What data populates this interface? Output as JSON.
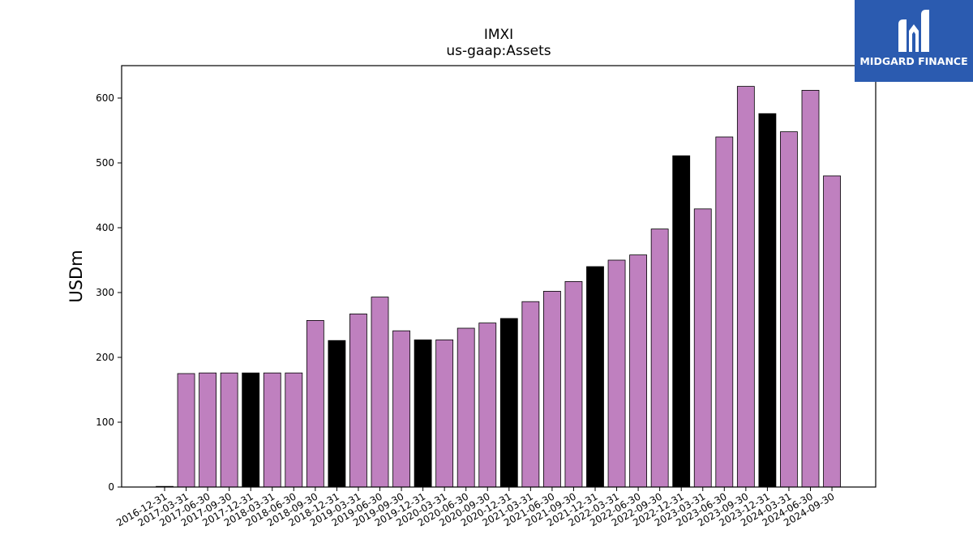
{
  "logo": {
    "text": "MIDGARD FINANCE"
  },
  "chart_data": {
    "type": "bar",
    "title": "IMXI",
    "subtitle": "us-gaap:Assets",
    "xlabel": "",
    "ylabel": "USDm",
    "ylim": [
      0,
      650
    ],
    "yticks": [
      0,
      100,
      200,
      300,
      400,
      500,
      600
    ],
    "grid": false,
    "colors": {
      "default": "#bf80bf",
      "highlight": "#000000",
      "edge": "#000000"
    },
    "categories": [
      "2016-12-31",
      "2017-03-31",
      "2017-06-30",
      "2017-09-30",
      "2017-12-31",
      "2018-03-31",
      "2018-06-30",
      "2018-09-30",
      "2018-12-31",
      "2019-03-31",
      "2019-06-30",
      "2019-09-30",
      "2019-12-31",
      "2020-03-31",
      "2020-06-30",
      "2020-09-30",
      "2020-12-31",
      "2021-03-31",
      "2021-06-30",
      "2021-09-30",
      "2021-12-31",
      "2022-03-31",
      "2022-06-30",
      "2022-09-30",
      "2022-12-31",
      "2023-03-31",
      "2023-06-30",
      "2023-09-30",
      "2023-12-31",
      "2024-03-31",
      "2024-06-30",
      "2024-09-30"
    ],
    "values": [
      1,
      175,
      176,
      176,
      176,
      176,
      176,
      257,
      226,
      267,
      293,
      241,
      227,
      227,
      245,
      253,
      260,
      286,
      302,
      317,
      340,
      350,
      358,
      398,
      511,
      429,
      540,
      618,
      576,
      548,
      612,
      480
    ],
    "highlight": [
      false,
      false,
      false,
      false,
      true,
      false,
      false,
      false,
      true,
      false,
      false,
      false,
      true,
      false,
      false,
      false,
      true,
      false,
      false,
      false,
      true,
      false,
      false,
      false,
      true,
      false,
      false,
      false,
      true,
      false,
      false,
      false
    ]
  }
}
